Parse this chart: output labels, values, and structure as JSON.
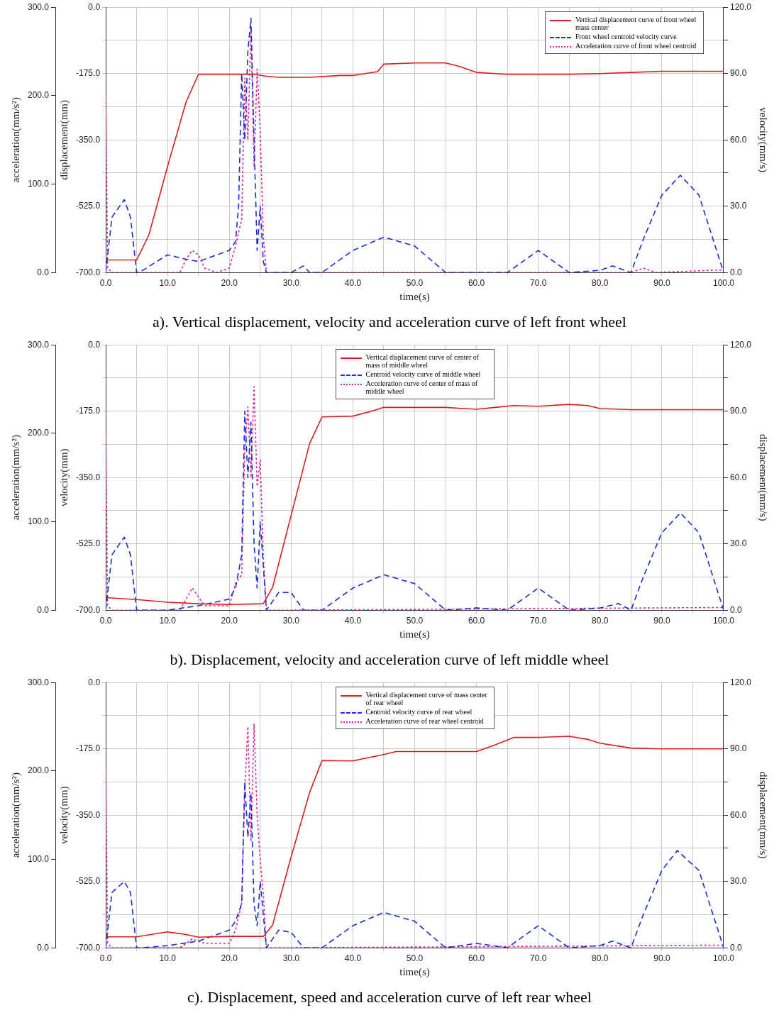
{
  "chart_data": [
    {
      "type": "line",
      "title": "a). Vertical displacement, velocity and acceleration curve of left front wheel",
      "xlabel": "time(s)",
      "ylabel": "displacement(mm)",
      "y2label": "velocity(mm/s)",
      "y3label": "acceleration(mm/s²)",
      "grid": true,
      "legend": "top right",
      "marker": "none",
      "xlim": [
        0,
        100
      ],
      "xticks": [
        {
          "value": 0,
          "label": "0.0"
        },
        {
          "value": 5,
          "label": null
        },
        {
          "value": 10,
          "label": "10.0"
        },
        {
          "value": 15,
          "label": null
        },
        {
          "value": 20,
          "label": "20.0"
        },
        {
          "value": 25,
          "label": null
        },
        {
          "value": 30,
          "label": "30.0"
        },
        {
          "value": 35,
          "label": null
        },
        {
          "value": 40,
          "label": "40.0"
        },
        {
          "value": 45,
          "label": null
        },
        {
          "value": 50,
          "label": "50.0"
        },
        {
          "value": 55,
          "label": null
        },
        {
          "value": 60,
          "label": "60.0"
        },
        {
          "value": 65,
          "label": null
        },
        {
          "value": 70,
          "label": "70.0"
        },
        {
          "value": 75,
          "label": null
        },
        {
          "value": 80,
          "label": "80.0"
        },
        {
          "value": 85,
          "label": null
        },
        {
          "value": 90,
          "label": "90.0"
        },
        {
          "value": 95,
          "label": null
        },
        {
          "value": 100,
          "label": "100.0"
        }
      ],
      "ylim": [
        -700,
        0
      ],
      "yticks": [
        {
          "value": -700,
          "label": "-700.0"
        },
        {
          "value": -612.5,
          "label": null
        },
        {
          "value": -525,
          "label": "-525.0"
        },
        {
          "value": -437.5,
          "label": null
        },
        {
          "value": -350,
          "label": "-350.0"
        },
        {
          "value": -262.5,
          "label": null
        },
        {
          "value": -175,
          "label": "-175.0"
        },
        {
          "value": -87.5,
          "label": null
        },
        {
          "value": 0,
          "label": "0.0"
        }
      ],
      "y2lim": [
        0,
        120
      ],
      "y2ticks": [
        {
          "value": 0,
          "label": "0.0"
        },
        {
          "value": 15,
          "label": null
        },
        {
          "value": 30,
          "label": "30.0"
        },
        {
          "value": 45,
          "label": null
        },
        {
          "value": 60,
          "label": "60.0"
        },
        {
          "value": 75,
          "label": null
        },
        {
          "value": 90,
          "label": "90.0"
        },
        {
          "value": 105,
          "label": null
        },
        {
          "value": 120,
          "label": "120.0"
        }
      ],
      "y3lim": [
        0,
        300
      ],
      "y3ticks": [
        {
          "value": 0,
          "label": "0.0"
        },
        {
          "value": 100,
          "label": "100.0"
        },
        {
          "value": 200,
          "label": "200.0"
        },
        {
          "value": 300,
          "label": "300.0"
        }
      ],
      "series": [
        {
          "name": "Vertical displacement curve of front wheel mass center",
          "color": "#dd1c1c",
          "line_style": "solid",
          "axis": "y",
          "x": [
            0,
            5,
            7,
            10,
            13,
            15,
            20,
            24,
            26,
            28,
            33,
            38,
            40,
            42,
            44,
            45,
            50,
            55,
            57,
            60,
            65,
            75,
            80,
            85,
            90,
            100
          ],
          "values": [
            -667,
            -667,
            -600,
            -420,
            -250,
            -177,
            -177,
            -177,
            -182,
            -185,
            -185,
            -180,
            -180,
            -175,
            -170,
            -150,
            -147,
            -147,
            -155,
            -172,
            -177,
            -177,
            -175,
            -172,
            -169,
            -169
          ]
        },
        {
          "name": "Front wheel centroid velocity curve",
          "color": "#1c2fd1",
          "line_style": "dashed",
          "axis": "y2",
          "x": [
            0,
            1,
            3,
            4,
            5,
            6,
            10,
            13,
            15,
            18,
            20,
            21,
            21.5,
            22,
            22.5,
            23,
            23.5,
            24,
            24.5,
            25,
            25.5,
            26,
            30,
            32,
            33,
            35,
            40,
            45,
            50,
            55,
            60,
            65,
            70,
            75,
            80,
            82,
            85,
            87,
            90,
            93,
            96,
            100
          ],
          "values": [
            0,
            25,
            33,
            25,
            0,
            1,
            8,
            6,
            5,
            8,
            10,
            14,
            30,
            90,
            60,
            100,
            115,
            60,
            10,
            30,
            5,
            0,
            0,
            3,
            0,
            0,
            10,
            16,
            12,
            0,
            0,
            0,
            10,
            0,
            1,
            3,
            0,
            15,
            35,
            44,
            35,
            0
          ]
        },
        {
          "name": "Acceleration curve of front wheel centroid",
          "color": "#e0249c",
          "line_style": "dotted",
          "axis": "y3",
          "x": [
            0,
            0.3,
            1,
            5,
            12,
            13,
            14,
            15,
            16,
            18,
            20,
            21,
            22,
            22.5,
            23,
            23.5,
            24,
            24.5,
            25,
            25.5,
            26,
            30,
            85,
            87,
            89,
            100
          ],
          "values": [
            200,
            5,
            0,
            0,
            0,
            15,
            25,
            20,
            5,
            0,
            5,
            30,
            60,
            220,
            150,
            276,
            120,
            230,
            160,
            40,
            0,
            0,
            0,
            5,
            0,
            3
          ]
        }
      ]
    },
    {
      "type": "line",
      "title": "b). Displacement, velocity and acceleration curve of left middle wheel",
      "xlabel": "time(s)",
      "ylabel": "velocity(mm)",
      "y2label": "displacement(mm/s)",
      "y3label": "acceleration(mm/s²)",
      "grid": true,
      "legend": "top",
      "marker": "none",
      "xlim": [
        0,
        100
      ],
      "xticks": [
        {
          "value": 0,
          "label": "0.0"
        },
        {
          "value": 5,
          "label": null
        },
        {
          "value": 10,
          "label": "10.0"
        },
        {
          "value": 15,
          "label": null
        },
        {
          "value": 20,
          "label": "20.0"
        },
        {
          "value": 25,
          "label": null
        },
        {
          "value": 30,
          "label": "30.0"
        },
        {
          "value": 35,
          "label": null
        },
        {
          "value": 40,
          "label": "40.0"
        },
        {
          "value": 45,
          "label": null
        },
        {
          "value": 50,
          "label": "50.0"
        },
        {
          "value": 55,
          "label": null
        },
        {
          "value": 60,
          "label": "60.0"
        },
        {
          "value": 65,
          "label": null
        },
        {
          "value": 70,
          "label": "70.0"
        },
        {
          "value": 75,
          "label": null
        },
        {
          "value": 80,
          "label": "80.0"
        },
        {
          "value": 85,
          "label": null
        },
        {
          "value": 90,
          "label": "90.0"
        },
        {
          "value": 95,
          "label": null
        },
        {
          "value": 100,
          "label": "100.0"
        }
      ],
      "ylim": [
        -700,
        0
      ],
      "yticks": [
        {
          "value": -700,
          "label": "-700.0"
        },
        {
          "value": -612.5,
          "label": null
        },
        {
          "value": -525,
          "label": "-525.0"
        },
        {
          "value": -437.5,
          "label": null
        },
        {
          "value": -350,
          "label": "-350.0"
        },
        {
          "value": -262.5,
          "label": null
        },
        {
          "value": -175,
          "label": "-175.0"
        },
        {
          "value": -87.5,
          "label": null
        },
        {
          "value": 0,
          "label": "0.0"
        }
      ],
      "y2lim": [
        0,
        120
      ],
      "y2ticks": [
        {
          "value": 0,
          "label": "0.0"
        },
        {
          "value": 15,
          "label": null
        },
        {
          "value": 30,
          "label": "30.0"
        },
        {
          "value": 45,
          "label": null
        },
        {
          "value": 60,
          "label": "60.0"
        },
        {
          "value": 75,
          "label": null
        },
        {
          "value": 90,
          "label": "90.0"
        },
        {
          "value": 105,
          "label": null
        },
        {
          "value": 120,
          "label": "120.0"
        }
      ],
      "y3lim": [
        0,
        300
      ],
      "y3ticks": [
        {
          "value": 0,
          "label": "0.0"
        },
        {
          "value": 100,
          "label": "100.0"
        },
        {
          "value": 200,
          "label": "200.0"
        },
        {
          "value": 300,
          "label": "300.0"
        }
      ],
      "series": [
        {
          "name": "Vertical displacement curve of center of mass of middle wheel",
          "color": "#dd1c1c",
          "line_style": "solid",
          "axis": "y",
          "x": [
            0,
            5,
            10,
            15,
            20,
            25.5,
            27,
            30,
            33,
            35,
            40,
            43,
            45,
            55,
            58,
            60,
            63,
            66,
            70,
            75,
            78,
            80,
            85,
            100
          ],
          "values": [
            -667,
            -672,
            -679,
            -683,
            -685,
            -683,
            -640,
            -450,
            -260,
            -190,
            -188,
            -175,
            -165,
            -165,
            -168,
            -170,
            -165,
            -160,
            -162,
            -157,
            -160,
            -168,
            -171,
            -171
          ]
        },
        {
          "name": "Centroid velocity curve of middle wheel",
          "color": "#1c2fd1",
          "line_style": "dashed",
          "axis": "y2",
          "x": [
            0,
            1,
            3,
            4,
            5,
            6,
            10,
            15,
            20,
            21,
            22,
            22.5,
            23,
            23.5,
            24,
            24.5,
            25,
            26,
            28,
            30,
            32,
            35,
            40,
            45,
            50,
            55,
            60,
            65,
            70,
            75,
            80,
            83,
            85,
            87,
            90,
            93,
            96,
            100
          ],
          "values": [
            0,
            25,
            33,
            25,
            0,
            0,
            0,
            2,
            5,
            10,
            25,
            90,
            60,
            85,
            30,
            10,
            40,
            0,
            8,
            8,
            0,
            0,
            10,
            16,
            12,
            0,
            1,
            0,
            10,
            0,
            1,
            3,
            0,
            15,
            35,
            44,
            35,
            0
          ]
        },
        {
          "name": "Acceleration curve of center of mass of middle wheel",
          "color": "#e0249c",
          "line_style": "dotted",
          "axis": "y3",
          "x": [
            0,
            0.3,
            1,
            12,
            14,
            16,
            20,
            21,
            22,
            22.5,
            23,
            23.5,
            24,
            24.5,
            25,
            25.5,
            26,
            30,
            100
          ],
          "values": [
            200,
            5,
            0,
            0,
            25,
            5,
            5,
            30,
            40,
            180,
            230,
            150,
            253,
            140,
            170,
            60,
            0,
            0,
            3
          ]
        }
      ]
    },
    {
      "type": "line",
      "title": "c). Displacement, speed and acceleration curve of left rear wheel",
      "xlabel": "time(s)",
      "ylabel": "velocity(mm)",
      "y2label": "displacement(mm/s)",
      "y3label": "acceleration(mm/s²)",
      "grid": true,
      "legend": "top",
      "marker": "none",
      "xlim": [
        0,
        100
      ],
      "xticks": [
        {
          "value": 0,
          "label": "0.0"
        },
        {
          "value": 5,
          "label": null
        },
        {
          "value": 10,
          "label": "10.0"
        },
        {
          "value": 15,
          "label": null
        },
        {
          "value": 20,
          "label": "20.0"
        },
        {
          "value": 25,
          "label": null
        },
        {
          "value": 30,
          "label": "30.0"
        },
        {
          "value": 35,
          "label": null
        },
        {
          "value": 40,
          "label": "40.0"
        },
        {
          "value": 45,
          "label": null
        },
        {
          "value": 50,
          "label": "50.0"
        },
        {
          "value": 55,
          "label": null
        },
        {
          "value": 60,
          "label": "60.0"
        },
        {
          "value": 65,
          "label": null
        },
        {
          "value": 70,
          "label": "70.0"
        },
        {
          "value": 75,
          "label": null
        },
        {
          "value": 80,
          "label": "80.0"
        },
        {
          "value": 85,
          "label": null
        },
        {
          "value": 90,
          "label": "90.0"
        },
        {
          "value": 95,
          "label": null
        },
        {
          "value": 100,
          "label": "100.0"
        }
      ],
      "ylim": [
        -700,
        0
      ],
      "yticks": [
        {
          "value": -700,
          "label": "-700.0"
        },
        {
          "value": -612.5,
          "label": null
        },
        {
          "value": -525,
          "label": "-525.0"
        },
        {
          "value": -437.5,
          "label": null
        },
        {
          "value": -350,
          "label": "-350.0"
        },
        {
          "value": -262.5,
          "label": null
        },
        {
          "value": -175,
          "label": "-175.0"
        },
        {
          "value": -87.5,
          "label": null
        },
        {
          "value": 0,
          "label": "0.0"
        }
      ],
      "y2lim": [
        0,
        120
      ],
      "y2ticks": [
        {
          "value": 0,
          "label": "0.0"
        },
        {
          "value": 15,
          "label": null
        },
        {
          "value": 30,
          "label": "30.0"
        },
        {
          "value": 45,
          "label": null
        },
        {
          "value": 60,
          "label": "60.0"
        },
        {
          "value": 75,
          "label": null
        },
        {
          "value": 90,
          "label": "90.0"
        },
        {
          "value": 105,
          "label": null
        },
        {
          "value": 120,
          "label": "120.0"
        }
      ],
      "y3lim": [
        0,
        300
      ],
      "y3ticks": [
        {
          "value": 0,
          "label": "0.0"
        },
        {
          "value": 100,
          "label": "100.0"
        },
        {
          "value": 200,
          "label": "200.0"
        },
        {
          "value": 300,
          "label": "300.0"
        }
      ],
      "series": [
        {
          "name": "Vertical displacement curve of mass center of rear wheel",
          "color": "#dd1c1c",
          "line_style": "solid",
          "axis": "y",
          "x": [
            0,
            5,
            8,
            10,
            13,
            15,
            20,
            25.5,
            27,
            30,
            33,
            35,
            40,
            42,
            45,
            47,
            60,
            63,
            66,
            70,
            75,
            78,
            80,
            85,
            90,
            100
          ],
          "values": [
            -671,
            -671,
            -663,
            -658,
            -665,
            -672,
            -670,
            -670,
            -640,
            -460,
            -290,
            -206,
            -207,
            -200,
            -190,
            -182,
            -182,
            -165,
            -145,
            -145,
            -142,
            -150,
            -160,
            -173,
            -175,
            -175
          ]
        },
        {
          "name": "Centroid velocity curve of rear wheel",
          "color": "#1c2fd1",
          "line_style": "dashed",
          "axis": "y2",
          "x": [
            0,
            1,
            3,
            4,
            5,
            6,
            10,
            15,
            20,
            21,
            22,
            22.5,
            23,
            23.5,
            24,
            24.5,
            25,
            26,
            28,
            30,
            32,
            35,
            40,
            45,
            50,
            55,
            60,
            65,
            70,
            75,
            80,
            82,
            85,
            87,
            90,
            92.5,
            96,
            100
          ],
          "values": [
            0,
            25,
            30,
            25,
            0,
            0,
            1,
            3,
            8,
            12,
            20,
            75,
            50,
            70,
            20,
            10,
            30,
            0,
            8,
            7,
            0,
            0,
            10,
            16,
            12,
            0,
            2,
            0,
            10,
            0,
            1,
            3,
            0,
            15,
            35,
            44,
            35,
            0
          ]
        },
        {
          "name": "Acceleration curve of rear wheel centroid",
          "color": "#e0249c",
          "line_style": "dotted",
          "axis": "y3",
          "x": [
            0,
            0.3,
            1,
            12,
            14,
            16,
            20,
            21,
            22,
            22.5,
            23,
            23.5,
            24,
            24.5,
            25,
            25.5,
            26,
            30,
            100
          ],
          "values": [
            200,
            5,
            0,
            0,
            10,
            5,
            5,
            20,
            50,
            180,
            250,
            120,
            253,
            150,
            100,
            60,
            0,
            0,
            3
          ]
        }
      ]
    }
  ]
}
